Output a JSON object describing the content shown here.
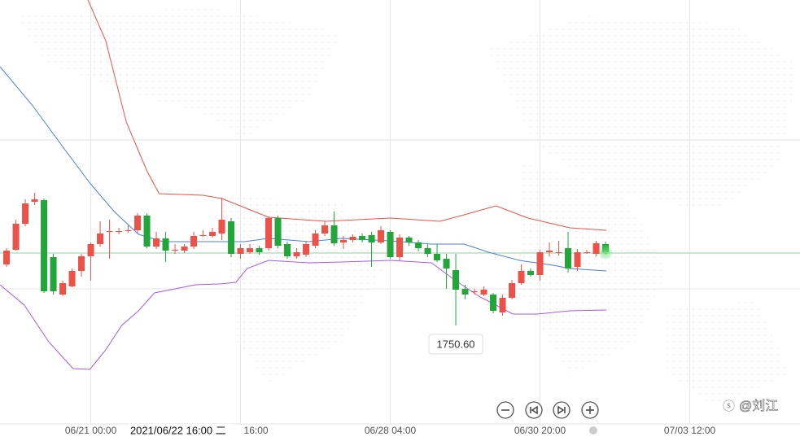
{
  "chart_data": {
    "type": "candlestick",
    "xlim": [
      -0.7,
      84.78
    ],
    "ylim": [
      1723.2,
      1830.6
    ],
    "xticks": [
      {
        "value": 9,
        "label": "06/21 00:00"
      },
      {
        "value": 25,
        "label": "16:00"
      },
      {
        "value": 41,
        "label": "06/28 04:00"
      },
      {
        "value": 57,
        "label": "06/30 20:00"
      },
      {
        "value": 73,
        "label": "07/03 12:00"
      }
    ],
    "ygrid": [
      1796.2,
      1759.6
    ],
    "crosshair_label": {
      "x": 18.6,
      "label": "2021/06/22 16:00 二"
    },
    "up_color": "#ec5247",
    "down_color": "#22a63a",
    "x": [
      0,
      1,
      2,
      3,
      4,
      5,
      6,
      7,
      8,
      9,
      10,
      11,
      12,
      13,
      14,
      15,
      16,
      17,
      18,
      19,
      20,
      21,
      22,
      23,
      24,
      25,
      26,
      27,
      28,
      29,
      30,
      31,
      32,
      33,
      34,
      35,
      36,
      37,
      38,
      39,
      40,
      41,
      42,
      43,
      44,
      45,
      46,
      47,
      48,
      49,
      50,
      51,
      52,
      53,
      54,
      55,
      56,
      57,
      58,
      59,
      60,
      61,
      62,
      63,
      64
    ],
    "open": [
      1765.6,
      1769.2,
      1775.6,
      1781.0,
      1781.4,
      1767.4,
      1758.2,
      1760.2,
      1764.0,
      1767.6,
      1770.6,
      1773.6,
      1773.8,
      1774.0,
      1774.0,
      1777.6,
      1770.0,
      1772.0,
      1769.2,
      1769.0,
      1770.0,
      1772.8,
      1772.6,
      1773.2,
      1776.2,
      1768.2,
      1768.6,
      1769.6,
      1769.6,
      1777.0,
      1770.6,
      1767.6,
      1768.0,
      1770.2,
      1773.2,
      1775.2,
      1771.0,
      1771.6,
      1772.6,
      1772.8,
      1771.0,
      1773.6,
      1767.4,
      1772.2,
      1771.0,
      1769.6,
      1768.2,
      1767.0,
      1764.2,
      1759.6,
      1759.0,
      1758.2,
      1758.2,
      1753.8,
      1757.4,
      1761.0,
      1764.0,
      1763.0,
      1768.6,
      1768.6,
      1769.6,
      1765.0,
      1768.6,
      1768.2,
      1770.6
    ],
    "high": [
      1769.6,
      1776.6,
      1781.6,
      1783.2,
      1781.8,
      1768.2,
      1761.6,
      1764.6,
      1768.2,
      1771.0,
      1776.2,
      1776.6,
      1774.6,
      1775.2,
      1778.2,
      1778.2,
      1773.6,
      1773.6,
      1770.6,
      1770.6,
      1773.6,
      1774.0,
      1774.6,
      1782.0,
      1777.0,
      1770.6,
      1770.6,
      1770.2,
      1777.4,
      1777.6,
      1771.2,
      1769.6,
      1771.4,
      1774.0,
      1776.2,
      1778.6,
      1772.6,
      1773.0,
      1773.2,
      1773.6,
      1775.0,
      1774.0,
      1773.0,
      1772.6,
      1771.6,
      1770.6,
      1770.6,
      1768.2,
      1768.2,
      1760.6,
      1759.6,
      1760.2,
      1758.6,
      1758.2,
      1761.8,
      1765.6,
      1764.6,
      1769.2,
      1771.0,
      1771.4,
      1773.6,
      1769.4,
      1769.2,
      1771.4,
      1771.2
    ],
    "low": [
      1765.0,
      1769.0,
      1775.0,
      1780.2,
      1758.6,
      1758.2,
      1757.8,
      1760.0,
      1762.6,
      1761.6,
      1770.0,
      1767.0,
      1773.0,
      1773.4,
      1773.2,
      1769.6,
      1769.4,
      1766.2,
      1768.2,
      1768.4,
      1769.4,
      1772.4,
      1772.2,
      1771.6,
      1767.4,
      1767.0,
      1768.2,
      1768.0,
      1769.0,
      1769.6,
      1767.0,
      1767.0,
      1767.4,
      1769.6,
      1772.6,
      1770.2,
      1769.4,
      1771.0,
      1771.0,
      1765.0,
      1770.6,
      1767.0,
      1766.6,
      1770.2,
      1768.8,
      1767.4,
      1766.2,
      1759.6,
      1750.6,
      1757.0,
      1758.2,
      1757.8,
      1753.6,
      1753.0,
      1757.0,
      1760.6,
      1762.6,
      1761.6,
      1767.6,
      1767.8,
      1763.6,
      1764.0,
      1768.2,
      1767.6,
      1768.2
    ],
    "close": [
      1769.0,
      1775.6,
      1780.6,
      1781.6,
      1759.0,
      1759.0,
      1761.0,
      1764.0,
      1767.6,
      1770.6,
      1773.2,
      1773.8,
      1773.8,
      1774.0,
      1777.6,
      1770.0,
      1772.0,
      1769.0,
      1769.2,
      1770.0,
      1772.6,
      1772.8,
      1773.6,
      1776.6,
      1768.2,
      1769.6,
      1769.6,
      1768.6,
      1777.0,
      1770.2,
      1767.6,
      1768.6,
      1770.6,
      1773.2,
      1775.2,
      1770.8,
      1771.6,
      1772.4,
      1771.6,
      1771.0,
      1774.0,
      1767.4,
      1772.2,
      1771.0,
      1769.6,
      1768.2,
      1766.6,
      1764.6,
      1759.4,
      1758.2,
      1759.0,
      1759.4,
      1754.2,
      1757.4,
      1761.0,
      1764.0,
      1763.0,
      1768.6,
      1769.0,
      1768.6,
      1764.6,
      1768.6,
      1768.6,
      1770.8,
      1768.6
    ],
    "low_label": {
      "index": 48,
      "label": "1750.60"
    },
    "price_line": 1768.4,
    "price_line_color": "#8fd3a0",
    "bands": [
      {
        "color": "#ec5247",
        "x": [
          8.7,
          10.6,
          12.8,
          15.0,
          16.3,
          21.0,
          23.0,
          25.4,
          28.0,
          34.1,
          41.0,
          46.3,
          48.9,
          52.3,
          55.7,
          60.2,
          64.1
        ],
        "values": [
          1830.6,
          1820.6,
          1800.6,
          1788.6,
          1783.0,
          1782.6,
          1781.8,
          1779.6,
          1777.2,
          1776.2,
          1777.0,
          1776.2,
          1777.8,
          1780.0,
          1777.0,
          1774.6,
          1774.0
        ]
      },
      {
        "color": "#4a7fe0",
        "x": [
          -0.7,
          2.8,
          6.3,
          8.9,
          11.5,
          14.1,
          16.7,
          21.9,
          25.4,
          28.0,
          32.3,
          35.8,
          41.0,
          45.4,
          48.9,
          51.5,
          54.8,
          58.4,
          60.2,
          64.1
        ],
        "values": [
          1814.2,
          1804.6,
          1793.6,
          1785.6,
          1778.6,
          1773.0,
          1771.2,
          1771.2,
          1771.2,
          1772.0,
          1771.2,
          1772.0,
          1771.4,
          1770.6,
          1770.6,
          1768.6,
          1766.6,
          1765.4,
          1764.6,
          1764.0
        ]
      },
      {
        "color": "#a75ae6",
        "x": [
          -0.7,
          1.9,
          4.5,
          7.1,
          8.9,
          10.6,
          12.3,
          14.1,
          15.8,
          20.2,
          22.8,
          24.5,
          25.7,
          28.0,
          32.3,
          35.8,
          41.0,
          45.4,
          48.0,
          50.6,
          52.3,
          54.1,
          56.7,
          60.2,
          64.1
        ],
        "values": [
          1760.6,
          1755.6,
          1746.6,
          1740.0,
          1739.8,
          1744.6,
          1750.6,
          1754.2,
          1758.6,
          1760.6,
          1760.8,
          1761.2,
          1764.6,
          1766.6,
          1766.0,
          1766.2,
          1766.6,
          1766.0,
          1761.6,
          1757.6,
          1755.6,
          1753.4,
          1753.4,
          1754.2,
          1754.4
        ]
      }
    ]
  },
  "watermark": "@刘江"
}
